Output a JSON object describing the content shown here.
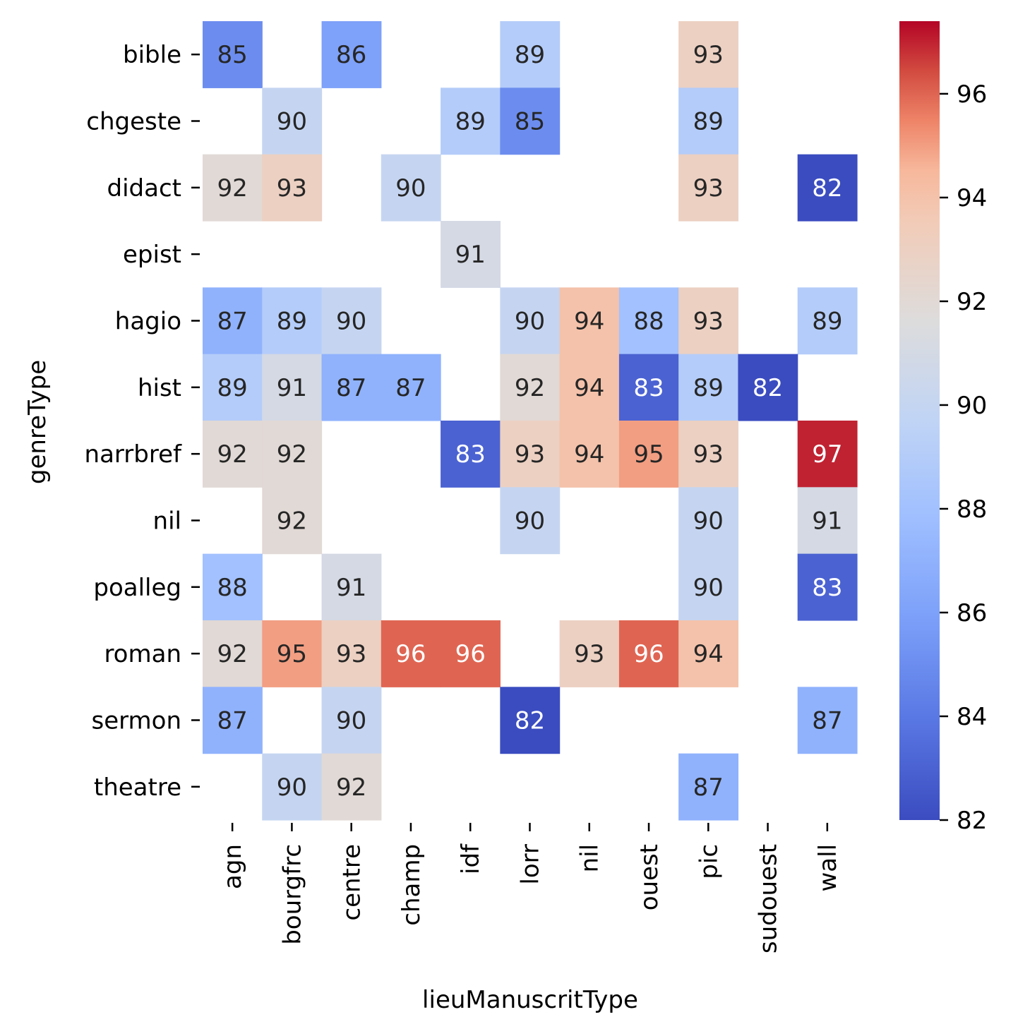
{
  "chart_data": {
    "type": "heatmap",
    "title": "",
    "xlabel": "lieuManuscritType",
    "ylabel": "genreType",
    "x_categories": [
      "agn",
      "bourgfrc",
      "centre",
      "champ",
      "idf",
      "lorr",
      "nil",
      "ouest",
      "pic",
      "sudouest",
      "wall"
    ],
    "y_categories": [
      "bible",
      "chgeste",
      "didact",
      "epist",
      "hagio",
      "hist",
      "narrbref",
      "nil",
      "poalleg",
      "roman",
      "sermon",
      "theatre"
    ],
    "values": [
      [
        85,
        null,
        86,
        null,
        null,
        89,
        null,
        null,
        93,
        null,
        null
      ],
      [
        null,
        90,
        null,
        null,
        89,
        85,
        null,
        null,
        89,
        null,
        null
      ],
      [
        92,
        93,
        null,
        90,
        null,
        null,
        null,
        null,
        93,
        null,
        82
      ],
      [
        null,
        null,
        null,
        null,
        91,
        null,
        null,
        null,
        null,
        null,
        null
      ],
      [
        87,
        89,
        90,
        null,
        null,
        90,
        94,
        88,
        93,
        null,
        89
      ],
      [
        89,
        91,
        87,
        87,
        null,
        92,
        94,
        83,
        89,
        82,
        null
      ],
      [
        92,
        92,
        null,
        null,
        83,
        93,
        94,
        95,
        93,
        null,
        97
      ],
      [
        null,
        92,
        null,
        null,
        null,
        90,
        null,
        null,
        90,
        null,
        91
      ],
      [
        88,
        null,
        91,
        null,
        null,
        null,
        null,
        null,
        90,
        null,
        83
      ],
      [
        92,
        95,
        93,
        96,
        96,
        null,
        93,
        96,
        94,
        null,
        null
      ],
      [
        87,
        null,
        90,
        null,
        null,
        82,
        null,
        null,
        null,
        null,
        87
      ],
      [
        null,
        90,
        92,
        null,
        null,
        null,
        null,
        null,
        87,
        null,
        null
      ]
    ],
    "colormap": "coolwarm",
    "color_range": [
      82,
      97.4
    ],
    "colorbar_ticks": [
      82,
      84,
      86,
      88,
      90,
      92,
      94,
      96
    ],
    "annotations": true
  }
}
